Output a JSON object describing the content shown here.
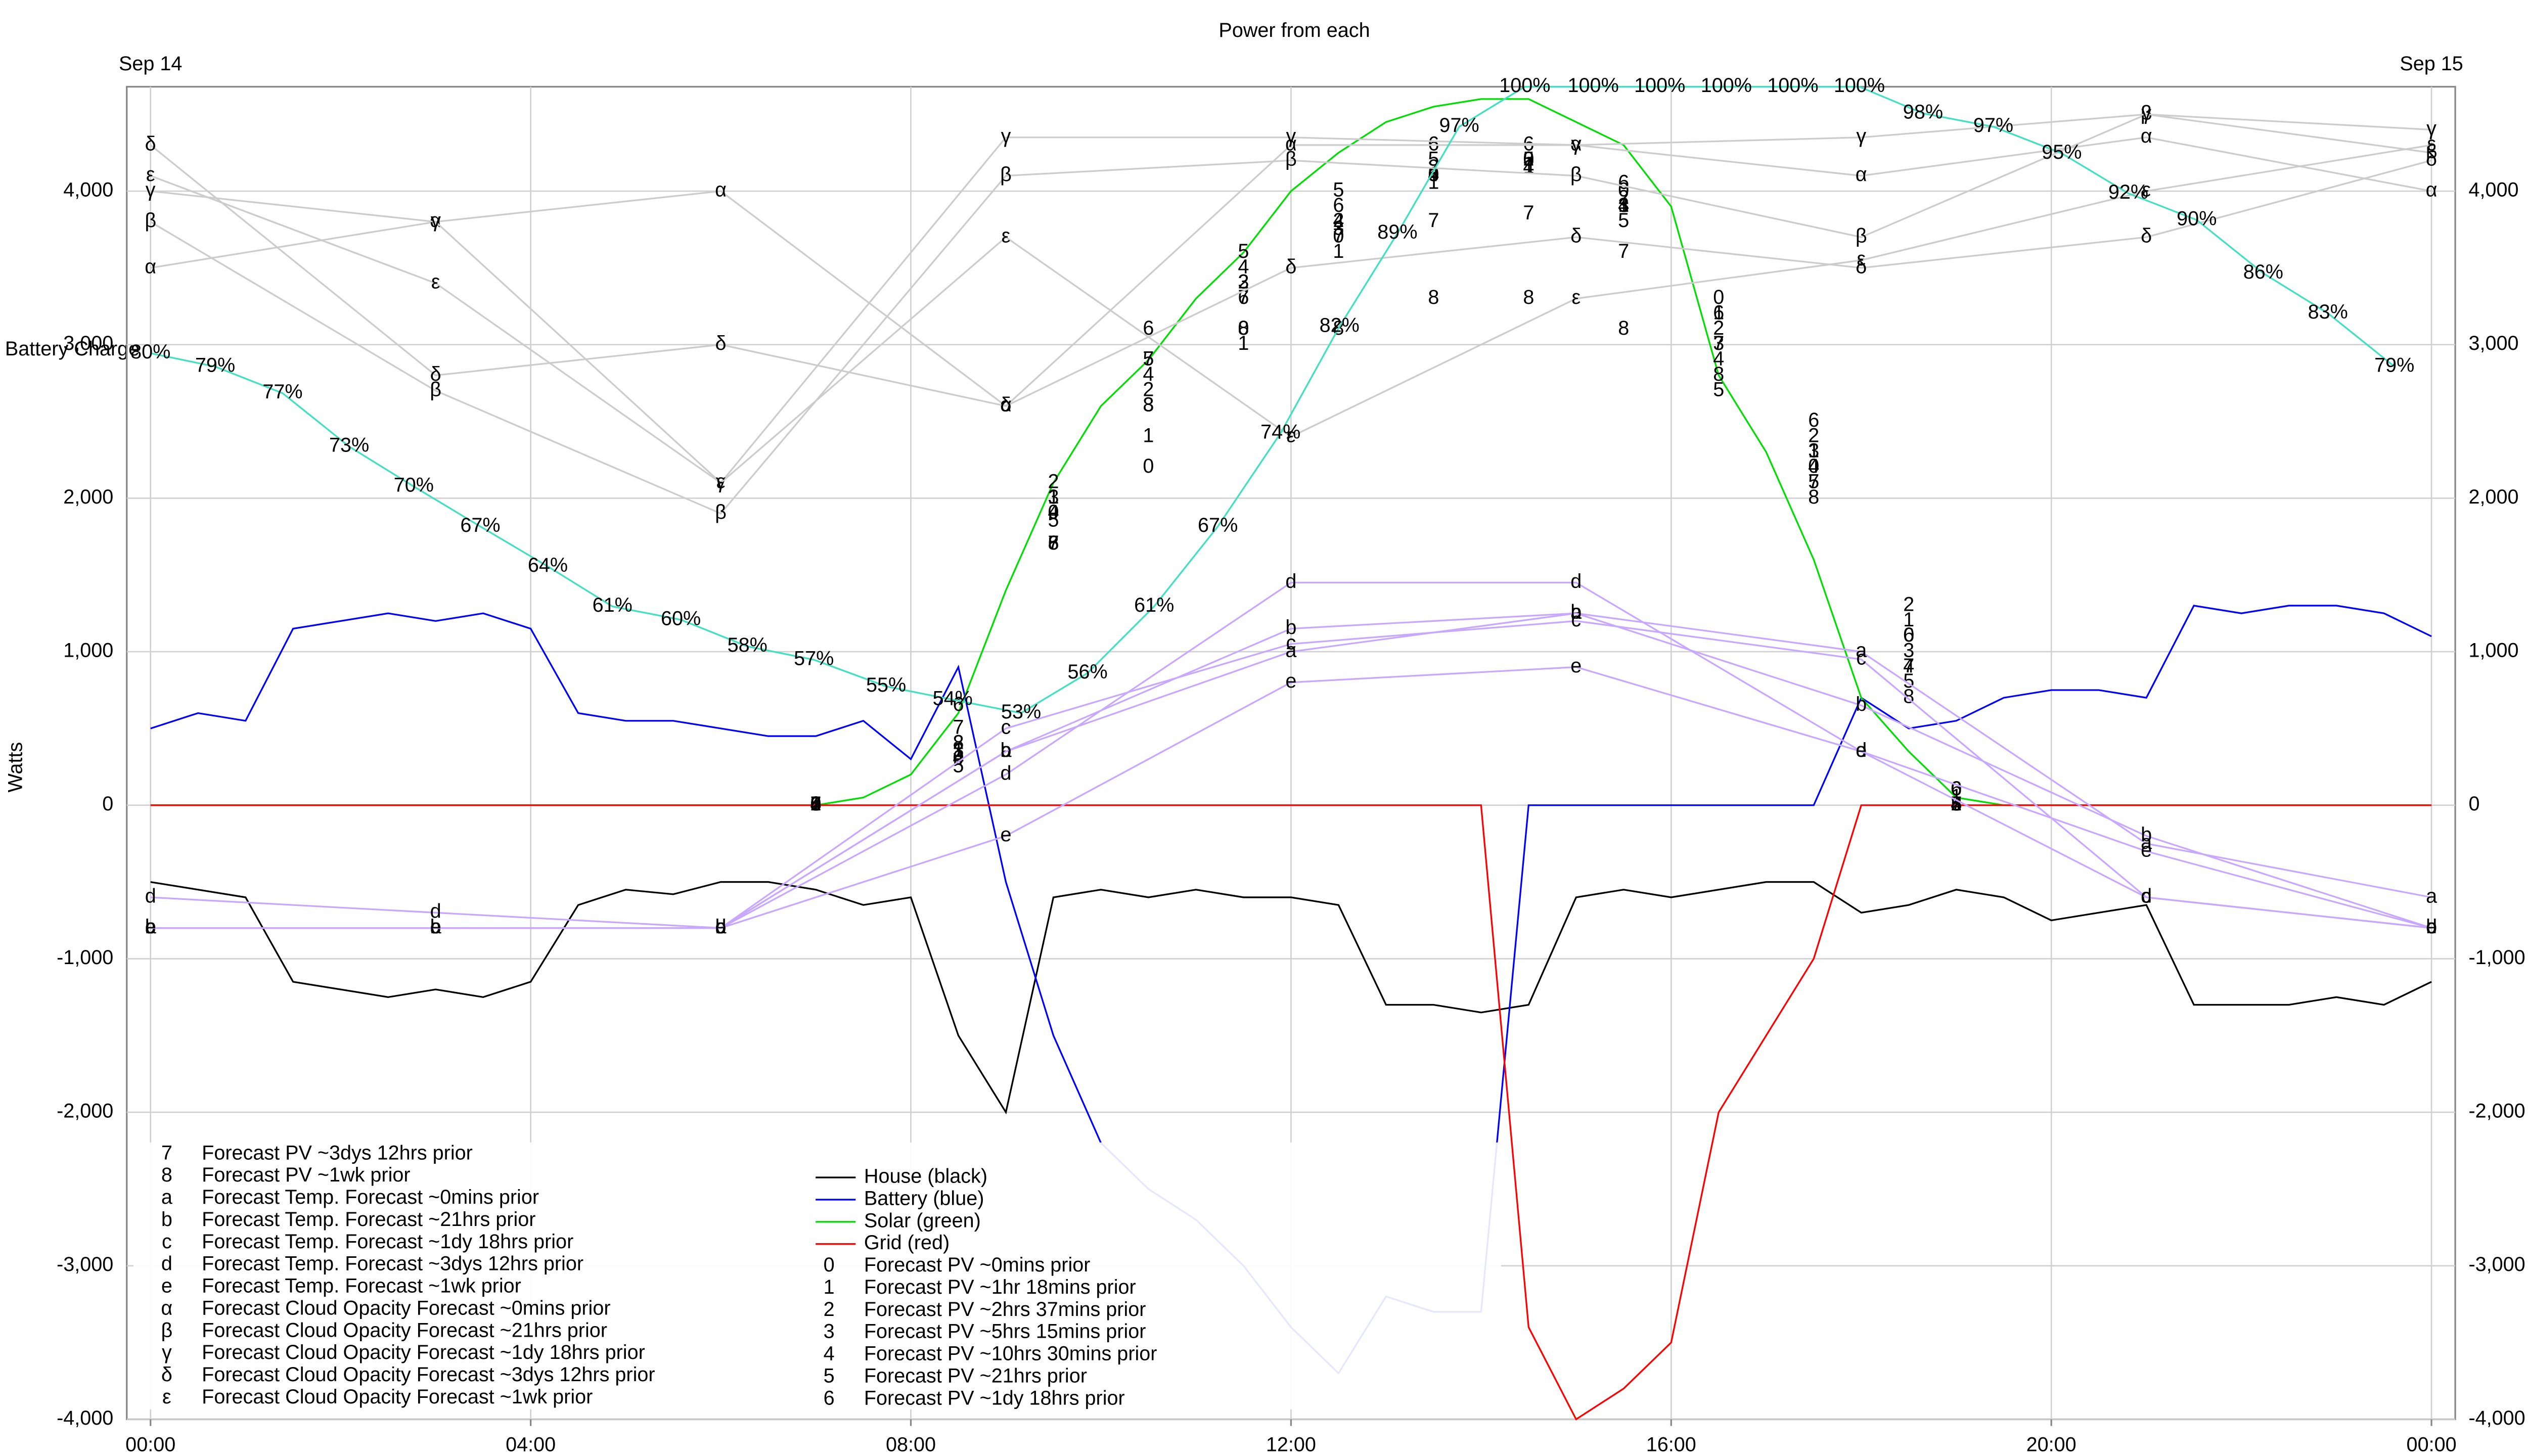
{
  "chart_data": {
    "type": "line",
    "title": "Power from each",
    "y_label": "Watts",
    "y2_label": "Battery Charge",
    "annotations": [
      {
        "text": "Sep 14",
        "x": 0
      },
      {
        "text": "Sep 15",
        "x": 24
      }
    ],
    "xlim": [
      -0.25,
      24.25
    ],
    "xticks": [
      {
        "value": 0,
        "label": "00:00"
      },
      {
        "value": 4,
        "label": "04:00"
      },
      {
        "value": 8,
        "label": "08:00"
      },
      {
        "value": 12,
        "label": "12:00"
      },
      {
        "value": 16,
        "label": "16:00"
      },
      {
        "value": 20,
        "label": "20:00"
      },
      {
        "value": 24,
        "label": "00:00"
      }
    ],
    "ylim": [
      -4000,
      4680
    ],
    "yticks": [
      {
        "value": -4000,
        "label": "-4,000"
      },
      {
        "value": -3000,
        "label": "-3,000"
      },
      {
        "value": -2000,
        "label": "-2,000"
      },
      {
        "value": -1000,
        "label": "-1,000"
      },
      0,
      {
        "value": 1000,
        "label": "1,000"
      },
      {
        "value": 2000,
        "label": "2,000"
      },
      {
        "value": 3000,
        "label": "3,000"
      },
      {
        "value": 4000,
        "label": "4,000"
      }
    ],
    "y2lim": [
      0,
      100
    ],
    "grid": true,
    "x": [
      0,
      0.5,
      1,
      1.5,
      2,
      2.5,
      3,
      3.5,
      4,
      4.5,
      5,
      5.5,
      6,
      6.5,
      7,
      7.5,
      8,
      8.5,
      9,
      9.5,
      10,
      10.5,
      11,
      11.5,
      12,
      12.5,
      13,
      13.5,
      14,
      14.5,
      15,
      15.5,
      16,
      16.5,
      17,
      17.5,
      18,
      18.5,
      19,
      19.5,
      20,
      20.5,
      21,
      21.5,
      22,
      22.5,
      23,
      23.5,
      24
    ],
    "series": [
      {
        "name": "House (black)",
        "color": "#000000",
        "values": [
          -500,
          -550,
          -600,
          -1150,
          -1200,
          -1250,
          -1200,
          -1250,
          -1150,
          -650,
          -550,
          -580,
          -500,
          -500,
          -550,
          -650,
          -600,
          -1500,
          -2000,
          -600,
          -550,
          -600,
          -550,
          -600,
          -600,
          -650,
          -1300,
          -1300,
          -1350,
          -1300,
          -600,
          -550,
          -600,
          -550,
          -500,
          -500,
          -700,
          -650,
          -550,
          -600,
          -750,
          -700,
          -650,
          -1300,
          -1300,
          -1300,
          -1250,
          -1300,
          -1150
        ]
      },
      {
        "name": "Battery (blue)",
        "color": "#0000ff",
        "values": [
          500,
          600,
          550,
          1150,
          1200,
          1250,
          1200,
          1250,
          1150,
          600,
          550,
          550,
          500,
          450,
          450,
          550,
          300,
          900,
          -500,
          -1500,
          -2200,
          -2500,
          -2700,
          -3000,
          -3400,
          -3700,
          -3200,
          -3300,
          -3300,
          0,
          0,
          0,
          0,
          0,
          0,
          0,
          700,
          500,
          550,
          700,
          750,
          750,
          700,
          1300,
          1250,
          1300,
          1300,
          1250,
          1100
        ]
      },
      {
        "name": "Solar (green)",
        "color": "#00dd00",
        "values": [
          0,
          0,
          0,
          0,
          0,
          0,
          0,
          0,
          0,
          0,
          0,
          0,
          0,
          0,
          0,
          50,
          200,
          600,
          1400,
          2100,
          2600,
          2900,
          3300,
          3600,
          4000,
          4250,
          4450,
          4550,
          4600,
          4600,
          4450,
          4300,
          3900,
          2800,
          2300,
          1600,
          700,
          350,
          50,
          0,
          0,
          0,
          0,
          0,
          0,
          0,
          0,
          0,
          0
        ]
      },
      {
        "name": "Grid (red)",
        "color": "#ff0000",
        "values": [
          0,
          0,
          0,
          0,
          0,
          0,
          0,
          0,
          0,
          0,
          0,
          0,
          0,
          0,
          0,
          0,
          0,
          0,
          0,
          0,
          0,
          0,
          0,
          0,
          0,
          0,
          0,
          0,
          0,
          -3400,
          -4000,
          -3800,
          -3500,
          -2000,
          -1500,
          -1000,
          0,
          0,
          0,
          0,
          0,
          0,
          0,
          0,
          0,
          0,
          0,
          0,
          0
        ]
      },
      {
        "symbol": "0",
        "name": "Forecast PV ~0mins prior",
        "color": "#000000",
        "x": [
          7,
          8.5,
          9.5,
          10.5,
          11.5,
          12.5,
          13.5,
          14.5,
          15.5,
          16.5,
          17.5,
          18.5,
          19
        ],
        "values": [
          0,
          300,
          1900,
          2200,
          3100,
          3700,
          4100,
          4200,
          4000,
          3300,
          2200,
          1100,
          100
        ]
      },
      {
        "symbol": "1",
        "name": "Forecast PV ~1hr 18mins prior",
        "color": "#000000",
        "x": [
          7,
          8.5,
          9.5,
          10.5,
          11.5,
          12.5,
          13.5,
          14.5,
          15.5,
          16.5,
          17.5,
          18.5,
          19
        ],
        "values": [
          0,
          350,
          2000,
          2400,
          3000,
          3600,
          4050,
          4150,
          3900,
          3200,
          2300,
          1200,
          50
        ]
      },
      {
        "symbol": "2",
        "name": "Forecast PV ~2hrs 37mins prior",
        "color": "#000000",
        "x": [
          7,
          8.5,
          9.5,
          10.5,
          11.5,
          12.5,
          13.5,
          14.5,
          15.5,
          16.5,
          17.5,
          18.5,
          19
        ],
        "values": [
          0,
          400,
          2100,
          2700,
          3400,
          3800,
          4150,
          4200,
          3950,
          3100,
          2400,
          1300,
          0
        ]
      },
      {
        "symbol": "3",
        "name": "Forecast PV ~5hrs 15mins prior",
        "color": "#000000",
        "x": [
          7,
          8.5,
          9.5,
          10.5,
          11.5,
          12.5,
          13.5,
          14.5,
          15.5,
          16.5,
          17.5,
          18.5,
          19
        ],
        "values": [
          0,
          350,
          2000,
          2600,
          3400,
          3750,
          4100,
          4200,
          3900,
          3000,
          2300,
          1000,
          0
        ]
      },
      {
        "symbol": "4",
        "name": "Forecast PV ~10hrs 30mins prior",
        "color": "#000000",
        "x": [
          7,
          8.5,
          9.5,
          10.5,
          11.5,
          12.5,
          13.5,
          14.5,
          15.5,
          16.5,
          17.5,
          18.5,
          19
        ],
        "values": [
          0,
          300,
          1900,
          2800,
          3500,
          3800,
          4100,
          4150,
          3900,
          2900,
          2200,
          900,
          0
        ]
      },
      {
        "symbol": "5",
        "name": "Forecast PV ~21hrs prior",
        "color": "#000000",
        "x": [
          7,
          8.5,
          9.5,
          10.5,
          11.5,
          12.5,
          13.5,
          14.5,
          15.5,
          16.5,
          17.5,
          18.5,
          19
        ],
        "values": [
          0,
          250,
          1850,
          2900,
          3600,
          4000,
          4200,
          4200,
          3800,
          2700,
          2100,
          800,
          0
        ]
      },
      {
        "symbol": "6",
        "name": "Forecast PV ~1dy 18hrs prior",
        "color": "#000000",
        "x": [
          7,
          8.5,
          9.5,
          10.5,
          11.5,
          12.5,
          13.5,
          14.5,
          15.5,
          16.5,
          17.5,
          18.5,
          19
        ],
        "values": [
          0,
          650,
          1700,
          3100,
          3300,
          3900,
          4300,
          4300,
          4050,
          3200,
          2500,
          1100,
          100
        ]
      },
      {
        "symbol": "7",
        "name": "Forecast PV ~3dys 12hrs prior",
        "color": "#000000",
        "x": [
          7,
          8.5,
          9.5,
          10.5,
          11.5,
          12.5,
          13.5,
          14.5,
          15.5,
          16.5,
          17.5,
          18.5,
          19
        ],
        "values": [
          0,
          500,
          1700,
          2900,
          3300,
          3700,
          3800,
          3850,
          3600,
          3000,
          2100,
          900,
          0
        ]
      },
      {
        "symbol": "8",
        "name": "Forecast PV ~1wk prior",
        "color": "#000000",
        "x": [
          7,
          8.5,
          9.5,
          10.5,
          11.5,
          12.5,
          13.5,
          14.5,
          15.5,
          16.5,
          17.5,
          18.5,
          19
        ],
        "values": [
          0,
          400,
          1700,
          2600,
          3100,
          3100,
          3300,
          3300,
          3100,
          2800,
          2000,
          700,
          0
        ]
      },
      {
        "symbol": "a",
        "name": "Forecast Temp. Forecast ~0mins prior",
        "color": "#000000",
        "line_color": "#c8a8ff",
        "x": [
          0,
          3,
          6,
          9,
          12,
          15,
          18,
          21,
          24
        ],
        "values": [
          -800,
          -800,
          -800,
          350,
          1000,
          1250,
          1000,
          -250,
          -600
        ]
      },
      {
        "symbol": "b",
        "name": "Forecast Temp. Forecast ~21hrs prior",
        "color": "#000000",
        "line_color": "#c8a8ff",
        "x": [
          0,
          3,
          6,
          9,
          12,
          15,
          18,
          21,
          24
        ],
        "values": [
          -800,
          -800,
          -800,
          350,
          1150,
          1250,
          650,
          -200,
          -800
        ]
      },
      {
        "symbol": "c",
        "name": "Forecast Temp. Forecast ~1dy 18hrs prior",
        "color": "#000000",
        "line_color": "#c8a8ff",
        "x": [
          0,
          3,
          6,
          9,
          12,
          15,
          18,
          21,
          24
        ],
        "values": [
          -800,
          -800,
          -800,
          500,
          1050,
          1200,
          950,
          -600,
          -800
        ]
      },
      {
        "symbol": "d",
        "name": "Forecast Temp. Forecast ~3dys 12hrs prior",
        "color": "#000000",
        "line_color": "#c8a8ff",
        "x": [
          0,
          3,
          6,
          9,
          12,
          15,
          18,
          21,
          24
        ],
        "values": [
          -600,
          -700,
          -800,
          200,
          1450,
          1450,
          350,
          -600,
          -800
        ]
      },
      {
        "symbol": "e",
        "name": "Forecast Temp. Forecast ~1wk prior",
        "color": "#000000",
        "line_color": "#c8a8ff",
        "x": [
          0,
          3,
          6,
          9,
          12,
          15,
          18,
          21,
          24
        ],
        "values": [
          -800,
          -800,
          -800,
          -200,
          800,
          900,
          350,
          -300,
          -800
        ]
      },
      {
        "symbol": "α",
        "name": "Forecast Cloud Opacity Forecast ~0mins prior",
        "color": "#000000",
        "line_color": "#cccccc",
        "x": [
          0,
          3,
          6,
          9,
          12,
          15,
          18,
          21,
          24
        ],
        "values": [
          3500,
          3800,
          4000,
          2600,
          4300,
          4300,
          4100,
          4350,
          4000
        ]
      },
      {
        "symbol": "β",
        "name": "Forecast Cloud Opacity Forecast ~21hrs prior",
        "color": "#000000",
        "line_color": "#cccccc",
        "x": [
          0,
          3,
          6,
          9,
          12,
          15,
          18,
          21,
          24
        ],
        "values": [
          3800,
          2700,
          1900,
          4100,
          4200,
          4100,
          3700,
          4500,
          4250
        ]
      },
      {
        "symbol": "γ",
        "name": "Forecast Cloud Opacity Forecast ~1dy 18hrs prior",
        "color": "#000000",
        "line_color": "#cccccc",
        "x": [
          0,
          3,
          6,
          9,
          12,
          15,
          18,
          21,
          24
        ],
        "values": [
          4000,
          3800,
          2100,
          4350,
          4350,
          4300,
          4350,
          4500,
          4400
        ]
      },
      {
        "symbol": "δ",
        "name": "Forecast Cloud Opacity Forecast ~3dys 12hrs prior",
        "color": "#000000",
        "line_color": "#cccccc",
        "x": [
          0,
          3,
          6,
          9,
          12,
          15,
          18,
          21,
          24
        ],
        "values": [
          4300,
          2800,
          3000,
          2600,
          3500,
          3700,
          3500,
          3700,
          4200
        ]
      },
      {
        "symbol": "ε",
        "name": "Forecast Cloud Opacity Forecast ~1wk prior",
        "color": "#000000",
        "line_color": "#cccccc",
        "x": [
          0,
          3,
          6,
          9,
          12,
          15,
          18,
          21,
          24
        ],
        "values": [
          4100,
          3400,
          2100,
          3700,
          2400,
          3300,
          3550,
          4000,
          4300
        ]
      }
    ],
    "battery_charge": {
      "axis": "y2",
      "color": "#40e0c0",
      "label_color": "#7a3b00",
      "x": [
        0,
        0.68,
        1.39,
        2.09,
        2.77,
        3.47,
        4.18,
        4.86,
        5.58,
        6.28,
        6.98,
        7.74,
        8.44,
        9.16,
        9.86,
        10.56,
        11.23,
        11.89,
        12.51,
        13.12,
        13.77,
        14.46,
        15.18,
        15.88,
        16.58,
        17.28,
        17.98,
        18.65,
        19.39,
        20.11,
        20.81,
        21.53,
        22.23,
        22.91,
        23.61
      ],
      "values": [
        80,
        79,
        77,
        73,
        70,
        67,
        64,
        61,
        60,
        58,
        57,
        55,
        54,
        53,
        56,
        61,
        67,
        74,
        82,
        89,
        97,
        100,
        100,
        100,
        100,
        100,
        100,
        98,
        97,
        95,
        92,
        90,
        86,
        83,
        79
      ],
      "value_labels": [
        "80%",
        "79%",
        "77%",
        "73%",
        "70%",
        "67%",
        "64%",
        "61%",
        "60%",
        "58%",
        "57%",
        "55%",
        "54%",
        "53%",
        "56%",
        "61%",
        "67%",
        "74%",
        "82%",
        "89%",
        "97%",
        "100%",
        "100%",
        "100%",
        "100%",
        "100%",
        "100%",
        "98%",
        "97%",
        "95%",
        "92%",
        "90%",
        "86%",
        "83%",
        "79%"
      ]
    }
  }
}
